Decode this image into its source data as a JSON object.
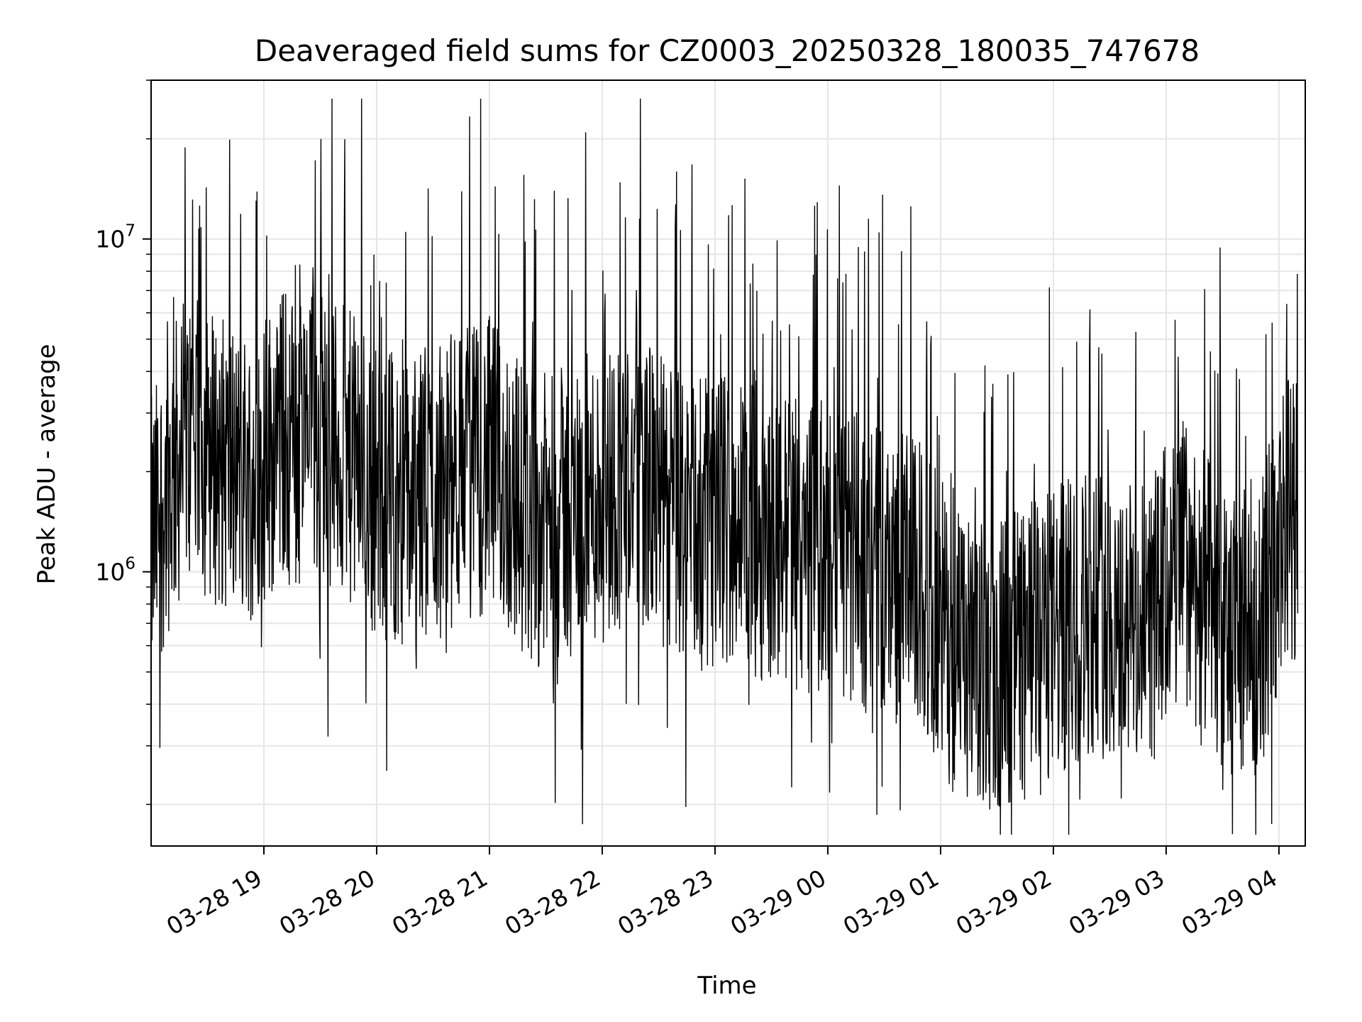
{
  "chart_data": {
    "type": "line",
    "title": "Deaveraged field sums for CZ0003_20250328_180035_747678",
    "xlabel": "Time",
    "ylabel": "Peak ADU - average",
    "y_scale": "log",
    "ylim": [
      150000,
      30000000
    ],
    "xlim": [
      "2025-03-28 18:00",
      "2025-03-29 04:14"
    ],
    "x_ticks": [
      {
        "value": "2025-03-28 19:00",
        "label": "03-28 19"
      },
      {
        "value": "2025-03-28 20:00",
        "label": "03-28 20"
      },
      {
        "value": "2025-03-28 21:00",
        "label": "03-28 21"
      },
      {
        "value": "2025-03-28 22:00",
        "label": "03-28 22"
      },
      {
        "value": "2025-03-28 23:00",
        "label": "03-28 23"
      },
      {
        "value": "2025-03-29 00:00",
        "label": "03-29 00"
      },
      {
        "value": "2025-03-29 01:00",
        "label": "03-29 01"
      },
      {
        "value": "2025-03-29 02:00",
        "label": "03-29 02"
      },
      {
        "value": "2025-03-29 03:00",
        "label": "03-29 03"
      },
      {
        "value": "2025-03-29 04:00",
        "label": "03-29 04"
      }
    ],
    "y_ticks": [
      {
        "value": 1000000,
        "base": "10",
        "exp": "6"
      },
      {
        "value": 10000000,
        "base": "10",
        "exp": "7"
      }
    ],
    "grid": true,
    "line_color": "#000000",
    "grid_color": "#e6e6e6",
    "series": [
      {
        "x": [
          "2025-03-28 18:00",
          "2025-03-28 18:10",
          "2025-03-28 18:20",
          "2025-03-28 18:30",
          "2025-03-28 18:40",
          "2025-03-28 18:50",
          "2025-03-28 19:00",
          "2025-03-28 19:10",
          "2025-03-28 19:20",
          "2025-03-28 19:30",
          "2025-03-28 19:40",
          "2025-03-28 19:50",
          "2025-03-28 20:00",
          "2025-03-28 20:10",
          "2025-03-28 20:20",
          "2025-03-28 20:30",
          "2025-03-28 20:40",
          "2025-03-28 20:50",
          "2025-03-28 21:00",
          "2025-03-28 21:10",
          "2025-03-28 21:20",
          "2025-03-28 21:30",
          "2025-03-28 21:40",
          "2025-03-28 21:50",
          "2025-03-28 22:00",
          "2025-03-28 22:10",
          "2025-03-28 22:20",
          "2025-03-28 22:30",
          "2025-03-28 22:40",
          "2025-03-28 22:50",
          "2025-03-28 23:00",
          "2025-03-28 23:10",
          "2025-03-28 23:20",
          "2025-03-28 23:30",
          "2025-03-28 23:40",
          "2025-03-28 23:50",
          "2025-03-29 00:00",
          "2025-03-29 00:10",
          "2025-03-29 00:20",
          "2025-03-29 00:30",
          "2025-03-29 00:40",
          "2025-03-29 00:50",
          "2025-03-29 01:00",
          "2025-03-29 01:10",
          "2025-03-29 01:20",
          "2025-03-29 01:30",
          "2025-03-29 01:40",
          "2025-03-29 01:50",
          "2025-03-29 02:00",
          "2025-03-29 02:10",
          "2025-03-29 02:20",
          "2025-03-29 02:30",
          "2025-03-29 02:40",
          "2025-03-29 02:50",
          "2025-03-29 03:00",
          "2025-03-29 03:10",
          "2025-03-29 03:20",
          "2025-03-29 03:30",
          "2025-03-29 03:40",
          "2025-03-29 03:50",
          "2025-03-29 04:00",
          "2025-03-29 04:10"
        ],
        "y": [
          1200000,
          1900000,
          2500000,
          2300000,
          2100000,
          2000000,
          2200000,
          2600000,
          2400000,
          2700000,
          2300000,
          2100000,
          1800000,
          1700000,
          1600000,
          1800000,
          1900000,
          2000000,
          2100000,
          1800000,
          1500000,
          1400000,
          1500000,
          1600000,
          1700000,
          1900000,
          2000000,
          1600000,
          1500000,
          1400000,
          1400000,
          1500000,
          1350000,
          1300000,
          1250000,
          1200000,
          1150000,
          1100000,
          1050000,
          1000000,
          950000,
          900000,
          700000,
          550000,
          500000,
          520000,
          580000,
          600000,
          650000,
          700000,
          800000,
          750000,
          700000,
          650000,
          900000,
          1100000,
          850000,
          600000,
          650000,
          700000,
          1200000,
          1600000
        ]
      }
    ]
  }
}
